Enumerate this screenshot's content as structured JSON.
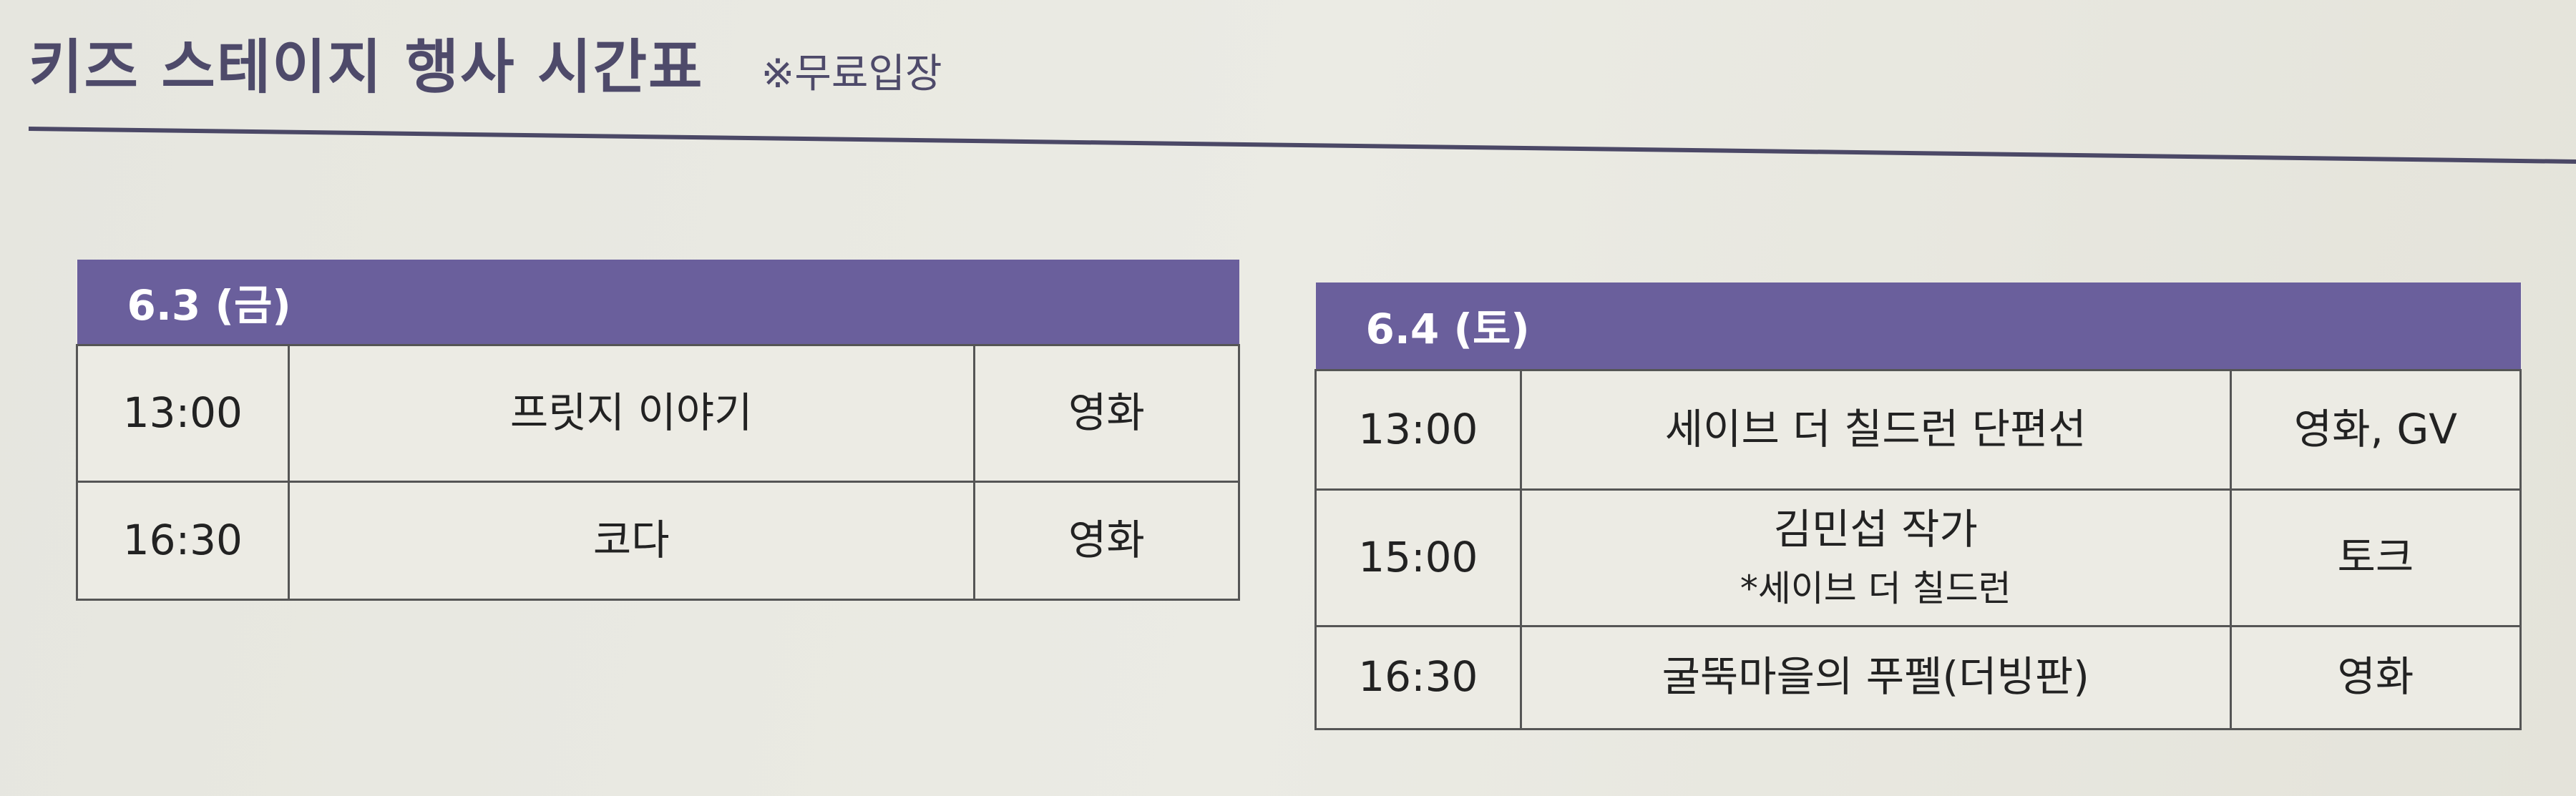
{
  "header": {
    "title": "키즈 스테이지 행사 시간표",
    "note": "※무료입장"
  },
  "colors": {
    "header_bg": "#6a5f9c",
    "title": "#4e4a6a"
  },
  "schedules": [
    {
      "date": "6.3 (금)",
      "rows": [
        {
          "time": "13:00",
          "program": "프릿지 이야기",
          "type": "영화"
        },
        {
          "time": "16:30",
          "program": "코다",
          "type": "영화"
        }
      ]
    },
    {
      "date": "6.4 (토)",
      "rows": [
        {
          "time": "13:00",
          "program": "세이브 더 칠드런 단편선",
          "type": "영화, GV"
        },
        {
          "time": "15:00",
          "program": "김민섭 작가",
          "program_note": "*세이브 더 칠드런",
          "type": "토크"
        },
        {
          "time": "16:30",
          "program": "굴뚝마을의 푸펠(더빙판)",
          "type": "영화"
        }
      ]
    }
  ]
}
